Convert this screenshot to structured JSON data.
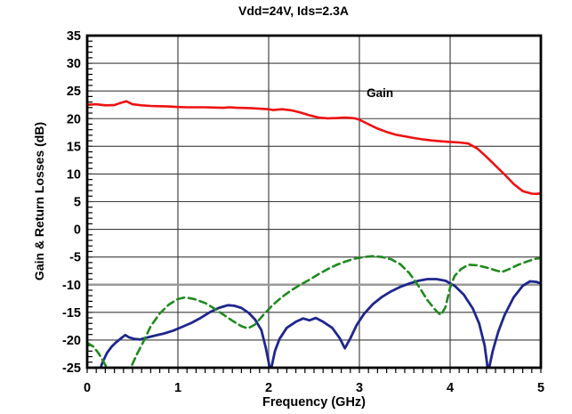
{
  "chart_data": {
    "type": "line",
    "title": "Vdd=24V, Ids=2.3A",
    "xlabel": "Frequency (GHz)",
    "ylabel": "Gain & Return Losses (dB)",
    "xlim": [
      0,
      5
    ],
    "ylim": [
      -25,
      35
    ],
    "x_tick_labels": [
      "0",
      "1",
      "2",
      "3",
      "4",
      "5"
    ],
    "y_tick_labels": [
      "35",
      "30",
      "25",
      "20",
      "15",
      "10",
      "5",
      "0",
      "-5",
      "-10",
      "-15",
      "-20",
      "-25"
    ],
    "x_minor_step": 0.1,
    "y_minor_step": 1,
    "grid": true,
    "thick_gridline_y": -10,
    "colors": {
      "frame": "#000000",
      "h_gridline": "#3c3c3c",
      "v_gridline": "#7d7d7d",
      "thick_gridline": "#9a9a9a",
      "gain_curve": "#ee1111",
      "navy_curve": "#1f268d",
      "green_curve": "#1e8a1e"
    },
    "annotations": [
      {
        "text": "Gain",
        "x": 3.08,
        "y": 24.7
      }
    ],
    "series": [
      {
        "name": "gain",
        "label": "Gain",
        "color_key": "gain_curve",
        "style": "solid",
        "width": 2.6,
        "points": [
          [
            0,
            22.5
          ],
          [
            0.1,
            22.6
          ],
          [
            0.15,
            22.5
          ],
          [
            0.2,
            22.4
          ],
          [
            0.3,
            22.45
          ],
          [
            0.38,
            22.9
          ],
          [
            0.43,
            23.15
          ],
          [
            0.5,
            22.6
          ],
          [
            0.6,
            22.4
          ],
          [
            0.7,
            22.3
          ],
          [
            0.8,
            22.25
          ],
          [
            0.9,
            22.2
          ],
          [
            1.0,
            22.1
          ],
          [
            1.1,
            22.05
          ],
          [
            1.2,
            22.05
          ],
          [
            1.3,
            22.05
          ],
          [
            1.4,
            22.0
          ],
          [
            1.5,
            21.95
          ],
          [
            1.57,
            22.05
          ],
          [
            1.65,
            21.95
          ],
          [
            1.8,
            21.9
          ],
          [
            1.9,
            21.8
          ],
          [
            2.0,
            21.7
          ],
          [
            2.05,
            21.55
          ],
          [
            2.15,
            21.7
          ],
          [
            2.25,
            21.5
          ],
          [
            2.35,
            21.1
          ],
          [
            2.45,
            20.6
          ],
          [
            2.55,
            20.2
          ],
          [
            2.65,
            20.05
          ],
          [
            2.75,
            20.1
          ],
          [
            2.85,
            20.2
          ],
          [
            2.95,
            20.05
          ],
          [
            3.0,
            19.8
          ],
          [
            3.1,
            19.0
          ],
          [
            3.2,
            18.2
          ],
          [
            3.3,
            17.6
          ],
          [
            3.4,
            17.1
          ],
          [
            3.5,
            16.8
          ],
          [
            3.6,
            16.5
          ],
          [
            3.7,
            16.25
          ],
          [
            3.8,
            16.05
          ],
          [
            3.9,
            15.9
          ],
          [
            4.0,
            15.8
          ],
          [
            4.1,
            15.7
          ],
          [
            4.2,
            15.5
          ],
          [
            4.3,
            14.6
          ],
          [
            4.4,
            13.1
          ],
          [
            4.5,
            11.5
          ],
          [
            4.6,
            9.9
          ],
          [
            4.7,
            8.2
          ],
          [
            4.8,
            6.9
          ],
          [
            4.9,
            6.45
          ],
          [
            4.95,
            6.4
          ],
          [
            5.0,
            6.5
          ]
        ]
      },
      {
        "name": "navy_solid",
        "label": "",
        "color_key": "navy_curve",
        "style": "solid",
        "width": 2.8,
        "points": [
          [
            0.13,
            -25.8
          ],
          [
            0.17,
            -24.0
          ],
          [
            0.22,
            -22.3
          ],
          [
            0.27,
            -21.2
          ],
          [
            0.32,
            -20.4
          ],
          [
            0.38,
            -19.6
          ],
          [
            0.42,
            -19.1
          ],
          [
            0.46,
            -19.5
          ],
          [
            0.52,
            -19.8
          ],
          [
            0.58,
            -19.9
          ],
          [
            0.65,
            -19.6
          ],
          [
            0.75,
            -19.2
          ],
          [
            0.85,
            -18.8
          ],
          [
            0.95,
            -18.3
          ],
          [
            1.05,
            -17.6
          ],
          [
            1.15,
            -16.9
          ],
          [
            1.25,
            -16.0
          ],
          [
            1.35,
            -15.0
          ],
          [
            1.45,
            -14.2
          ],
          [
            1.55,
            -13.7
          ],
          [
            1.62,
            -13.8
          ],
          [
            1.7,
            -14.2
          ],
          [
            1.78,
            -15.1
          ],
          [
            1.85,
            -16.3
          ],
          [
            1.92,
            -18.2
          ],
          [
            1.97,
            -21.5
          ],
          [
            2.0,
            -24.0
          ],
          [
            2.02,
            -25.8
          ],
          [
            2.07,
            -22.0
          ],
          [
            2.12,
            -19.8
          ],
          [
            2.2,
            -17.8
          ],
          [
            2.3,
            -16.7
          ],
          [
            2.38,
            -16.1
          ],
          [
            2.45,
            -16.45
          ],
          [
            2.52,
            -16.0
          ],
          [
            2.6,
            -16.7
          ],
          [
            2.7,
            -17.8
          ],
          [
            2.78,
            -19.6
          ],
          [
            2.84,
            -21.5
          ],
          [
            2.9,
            -19.7
          ],
          [
            2.97,
            -17.3
          ],
          [
            3.05,
            -15.3
          ],
          [
            3.15,
            -13.5
          ],
          [
            3.25,
            -12.2
          ],
          [
            3.35,
            -11.2
          ],
          [
            3.45,
            -10.4
          ],
          [
            3.55,
            -9.8
          ],
          [
            3.65,
            -9.3
          ],
          [
            3.75,
            -9.0
          ],
          [
            3.85,
            -9.0
          ],
          [
            3.95,
            -9.3
          ],
          [
            4.05,
            -10.2
          ],
          [
            4.15,
            -11.8
          ],
          [
            4.25,
            -14.3
          ],
          [
            4.32,
            -17.0
          ],
          [
            4.38,
            -21.0
          ],
          [
            4.42,
            -25.8
          ],
          [
            4.47,
            -22.0
          ],
          [
            4.53,
            -18.5
          ],
          [
            4.6,
            -15.5
          ],
          [
            4.7,
            -12.3
          ],
          [
            4.8,
            -10.2
          ],
          [
            4.88,
            -9.4
          ],
          [
            4.95,
            -9.5
          ],
          [
            5.0,
            -9.8
          ]
        ]
      },
      {
        "name": "green_dashed",
        "label": "",
        "color_key": "green_curve",
        "style": "dashed",
        "width": 2.6,
        "points": [
          [
            0,
            -20.5
          ],
          [
            0.07,
            -21.2
          ],
          [
            0.13,
            -22.5
          ],
          [
            0.2,
            -24.5
          ],
          [
            0.25,
            -26.0
          ],
          [
            0.35,
            -27.0
          ],
          [
            0.45,
            -26.0
          ],
          [
            0.5,
            -24.3
          ],
          [
            0.55,
            -22.5
          ],
          [
            0.62,
            -20.3
          ],
          [
            0.7,
            -17.5
          ],
          [
            0.8,
            -15.2
          ],
          [
            0.9,
            -13.6
          ],
          [
            1.0,
            -12.6
          ],
          [
            1.08,
            -12.3
          ],
          [
            1.18,
            -12.6
          ],
          [
            1.3,
            -13.3
          ],
          [
            1.4,
            -14.3
          ],
          [
            1.5,
            -15.4
          ],
          [
            1.6,
            -16.5
          ],
          [
            1.7,
            -17.5
          ],
          [
            1.77,
            -17.9
          ],
          [
            1.85,
            -17.2
          ],
          [
            1.95,
            -15.3
          ],
          [
            2.05,
            -13.6
          ],
          [
            2.15,
            -12.2
          ],
          [
            2.25,
            -11.0
          ],
          [
            2.35,
            -10.0
          ],
          [
            2.45,
            -9.1
          ],
          [
            2.55,
            -8.1
          ],
          [
            2.65,
            -7.2
          ],
          [
            2.75,
            -6.4
          ],
          [
            2.85,
            -5.8
          ],
          [
            2.95,
            -5.3
          ],
          [
            3.05,
            -5.0
          ],
          [
            3.15,
            -4.85
          ],
          [
            3.25,
            -5.0
          ],
          [
            3.35,
            -5.4
          ],
          [
            3.45,
            -6.3
          ],
          [
            3.55,
            -7.9
          ],
          [
            3.65,
            -10.2
          ],
          [
            3.75,
            -12.8
          ],
          [
            3.85,
            -14.8
          ],
          [
            3.9,
            -15.5
          ],
          [
            3.95,
            -14.0
          ],
          [
            4.0,
            -10.5
          ],
          [
            4.05,
            -8.4
          ],
          [
            4.12,
            -7.2
          ],
          [
            4.2,
            -6.4
          ],
          [
            4.3,
            -6.5
          ],
          [
            4.4,
            -6.9
          ],
          [
            4.5,
            -7.4
          ],
          [
            4.57,
            -7.7
          ],
          [
            4.65,
            -7.2
          ],
          [
            4.75,
            -6.4
          ],
          [
            4.85,
            -5.8
          ],
          [
            4.95,
            -5.3
          ],
          [
            5.0,
            -5.2
          ]
        ]
      }
    ]
  }
}
